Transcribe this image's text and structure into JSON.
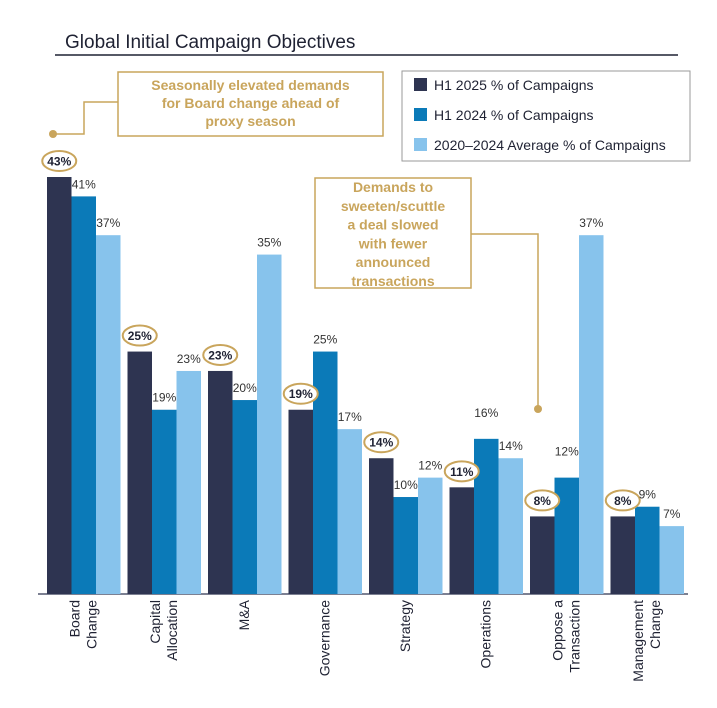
{
  "chart_data": {
    "type": "bar",
    "title": "Global Initial Campaign Objectives",
    "categories": [
      [
        "Board",
        "Change"
      ],
      [
        "Capital",
        "Allocation"
      ],
      [
        "M&A"
      ],
      [
        "Governance"
      ],
      [
        "Strategy"
      ],
      [
        "Operations"
      ],
      [
        "Oppose a",
        "Transaction"
      ],
      [
        "Management",
        "Change"
      ]
    ],
    "series": [
      {
        "name": "H1 2025 % of Campaigns",
        "values": [
          43,
          25,
          23,
          19,
          14,
          11,
          8,
          8
        ],
        "color": "#2e3451"
      },
      {
        "name": "H1 2024 % of Campaigns",
        "values": [
          41,
          19,
          20,
          25,
          10,
          16,
          12,
          9
        ],
        "color": "#0b7ab8"
      },
      {
        "name": "2020–2024 Average % of Campaigns",
        "values": [
          37,
          23,
          35,
          17,
          12,
          14,
          37,
          7
        ],
        "color": "#87c3ec"
      }
    ],
    "data_labels": [
      [
        "43%",
        "25%",
        "23%",
        "19%",
        "14%",
        "11%",
        "8%",
        "8%"
      ],
      [
        "41%",
        "19%",
        "20%",
        "25%",
        "10%",
        "16%",
        "12%",
        "9%"
      ],
      [
        "37%",
        "23%",
        "35%",
        "17%",
        "12%",
        "14%",
        "37%",
        "7%"
      ]
    ],
    "highlighted_series": 0,
    "highlight_color": "#c9a55c",
    "ylim": [
      0,
      43
    ],
    "grid": false,
    "legend_position": "top-right",
    "annotations": [
      {
        "lines": [
          "Seasonally elevated demands",
          "for Board change ahead of",
          "proxy season"
        ],
        "target_category": 0
      },
      {
        "lines": [
          "Demands to",
          "sweeten/scuttle",
          "a deal slowed",
          "with fewer",
          "announced",
          "transactions"
        ],
        "target_category": 6
      }
    ]
  }
}
